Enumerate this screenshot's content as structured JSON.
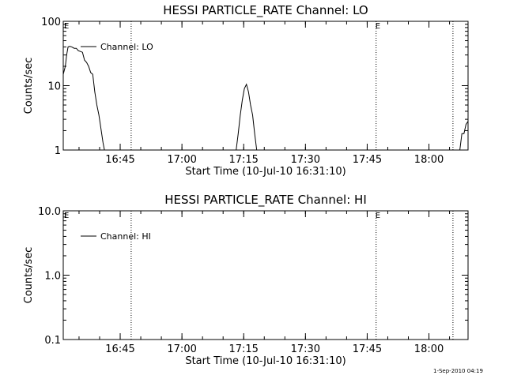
{
  "chart_data": [
    {
      "type": "line",
      "title": "HESSI PARTICLE_RATE Channel: LO",
      "xlabel": "Start Time (10-Jul-10 16:31:10)",
      "ylabel": "Counts/sec",
      "yscale": "log",
      "ylim": [
        1,
        100
      ],
      "xlim": [
        "16:31:10",
        "18:09:30"
      ],
      "grid": false,
      "legend_position": "top-left",
      "x_ticks": [
        "16:45",
        "17:00",
        "17:15",
        "17:30",
        "17:45",
        "18:00"
      ],
      "y_ticks": [
        "1",
        "10",
        "100"
      ],
      "event_lines": [
        "16:47:40",
        "17:47:10",
        "18:05:50"
      ],
      "event_markers": [
        "E",
        "E"
      ],
      "series": [
        {
          "name": "Channel: LO",
          "x": [
            "16:31:10",
            "16:31:40",
            "16:32:00",
            "16:32:20",
            "16:32:45",
            "16:33:15",
            "16:33:50",
            "16:34:20",
            "16:34:50",
            "16:35:20",
            "16:35:50",
            "16:36:20",
            "16:36:50",
            "16:37:20",
            "16:37:50",
            "16:38:20",
            "16:38:50",
            "16:39:20",
            "16:39:50",
            "16:40:10",
            "16:40:30",
            "16:40:50",
            "16:41:10",
            "17:12:40",
            "17:13:10",
            "17:13:40",
            "17:14:10",
            "17:14:40",
            "17:15:10",
            "17:15:40",
            "17:16:10",
            "17:16:40",
            "17:17:10",
            "17:17:40",
            "17:18:10",
            "17:18:40",
            "18:07:00",
            "18:07:30",
            "18:08:00",
            "18:08:30",
            "18:09:00",
            "18:09:30"
          ],
          "y": [
            15,
            20,
            30,
            40,
            41,
            40,
            38,
            38,
            35,
            34,
            33,
            25,
            23,
            20,
            16,
            15,
            8,
            5,
            3.5,
            2.5,
            1.8,
            1.3,
            1,
            null,
            1,
            1.8,
            3.5,
            6,
            9,
            10.5,
            8,
            5,
            3.5,
            1.8,
            1,
            null,
            null,
            1,
            1.8,
            1.8,
            2.5,
            2.8
          ]
        }
      ]
    },
    {
      "type": "line",
      "title": "HESSI PARTICLE_RATE Channel: HI",
      "xlabel": "Start Time (10-Jul-10 16:31:10)",
      "ylabel": "Counts/sec",
      "yscale": "log",
      "ylim": [
        0.1,
        10
      ],
      "xlim": [
        "16:31:10",
        "18:09:30"
      ],
      "grid": false,
      "legend_position": "top-left",
      "x_ticks": [
        "16:45",
        "17:00",
        "17:15",
        "17:30",
        "17:45",
        "18:00"
      ],
      "y_ticks": [
        "0.1",
        "1.0",
        "10.0"
      ],
      "event_lines": [
        "16:47:40",
        "17:47:10",
        "18:05:50"
      ],
      "event_markers": [
        "E",
        "E"
      ],
      "series": [
        {
          "name": "Channel: HI",
          "x": [],
          "y": []
        }
      ]
    }
  ],
  "footer": {
    "timestamp": "1-Sep-2010 04:19"
  }
}
